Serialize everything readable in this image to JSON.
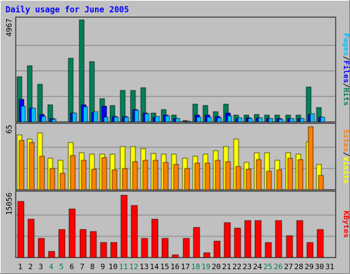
{
  "chart_data": [
    {
      "type": "bar",
      "panel": "hits-files-pages",
      "title": "Daily usage for June 2005",
      "x": [
        1,
        2,
        3,
        4,
        5,
        6,
        7,
        8,
        9,
        10,
        11,
        12,
        13,
        14,
        15,
        16,
        17,
        18,
        19,
        20,
        21,
        22,
        23,
        24,
        25,
        26,
        27,
        28,
        29,
        30,
        31
      ],
      "weekend_days": [
        4,
        5,
        11,
        12,
        18,
        19,
        25,
        26
      ],
      "ymax": 4967,
      "ymax_label": "4967",
      "ylabel_parts": [
        "Pages",
        "/",
        "Files",
        "/",
        "Hits"
      ],
      "series": [
        {
          "name": "Hits",
          "color": "#00805C",
          "values": [
            2190,
            2740,
            1850,
            820,
            0,
            3090,
            4967,
            2950,
            1150,
            790,
            1540,
            1540,
            1680,
            450,
            610,
            320,
            80,
            860,
            800,
            500,
            870,
            350,
            330,
            370,
            340,
            330,
            330,
            330,
            1710,
            700,
            0
          ]
        },
        {
          "name": "Files",
          "color": "#0000FF",
          "values": [
            1100,
            680,
            360,
            160,
            0,
            420,
            820,
            480,
            780,
            280,
            270,
            600,
            420,
            240,
            320,
            180,
            40,
            340,
            320,
            260,
            440,
            180,
            190,
            200,
            170,
            160,
            170,
            170,
            380,
            230,
            0
          ]
        },
        {
          "name": "Pages",
          "color": "#00C0FF",
          "values": [
            780,
            680,
            280,
            150,
            0,
            420,
            750,
            500,
            240,
            220,
            240,
            560,
            410,
            280,
            290,
            180,
            30,
            250,
            230,
            200,
            290,
            200,
            160,
            210,
            160,
            150,
            160,
            160,
            390,
            250,
            0
          ]
        }
      ]
    },
    {
      "type": "bar",
      "panel": "visits-sites",
      "x": [
        1,
        2,
        3,
        4,
        5,
        6,
        7,
        8,
        9,
        10,
        11,
        12,
        13,
        14,
        15,
        16,
        17,
        18,
        19,
        20,
        21,
        22,
        23,
        24,
        25,
        26,
        27,
        28,
        29,
        30,
        31
      ],
      "ymax": 65,
      "ymax_label": "65",
      "ylabel_parts": [
        "Sites",
        "/",
        "Visits"
      ],
      "series": [
        {
          "name": "Visits",
          "color": "#FFFF00",
          "values": [
            56,
            52,
            58,
            32,
            30,
            48,
            38,
            36,
            36,
            36,
            44,
            44,
            42,
            37,
            36,
            36,
            32,
            34,
            36,
            40,
            44,
            52,
            28,
            38,
            38,
            30,
            38,
            36,
            49,
            26,
            0
          ]
        },
        {
          "name": "Sites",
          "color": "#FF8000",
          "values": [
            50,
            48,
            34,
            22,
            17,
            35,
            30,
            21,
            33,
            20,
            22,
            29,
            30,
            30,
            28,
            26,
            22,
            27,
            27,
            30,
            29,
            24,
            21,
            31,
            19,
            20,
            32,
            31,
            64,
            15,
            0
          ]
        }
      ]
    },
    {
      "type": "bar",
      "panel": "kbytes",
      "x": [
        1,
        2,
        3,
        4,
        5,
        6,
        7,
        8,
        9,
        10,
        11,
        12,
        13,
        14,
        15,
        16,
        17,
        18,
        19,
        20,
        21,
        22,
        23,
        24,
        25,
        26,
        27,
        28,
        29,
        30,
        31
      ],
      "ymax": 15056,
      "ymax_label": "15056",
      "ylabel_parts": [
        "KBytes"
      ],
      "series": [
        {
          "name": "KBytes",
          "color": "#FF0000",
          "values": [
            13300,
            9100,
            4500,
            1500,
            6700,
            11500,
            6700,
            6100,
            3600,
            3600,
            14800,
            12300,
            4600,
            9100,
            4600,
            600,
            4600,
            7200,
            1100,
            3900,
            8200,
            7000,
            8800,
            8800,
            3600,
            8800,
            5200,
            8800,
            3600,
            6700,
            0
          ]
        }
      ]
    }
  ],
  "colors": {
    "background": "#C0C0C0",
    "frame": "#000000",
    "title": "#0000FF",
    "weekday_label": "#000000",
    "weekend_label": "#00805C",
    "gridline": "#808080"
  }
}
